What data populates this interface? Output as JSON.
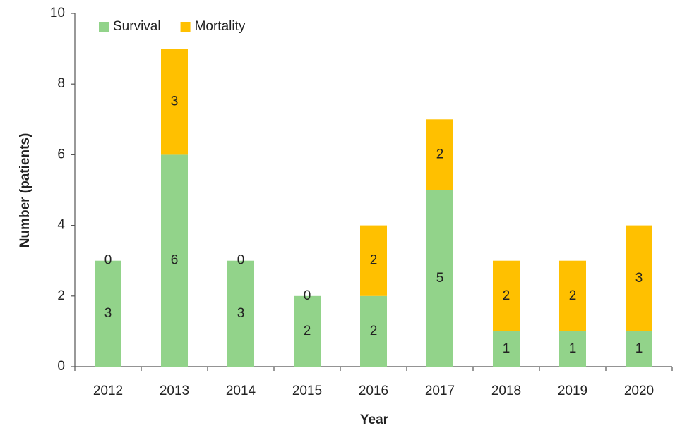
{
  "chart_data": {
    "type": "stacked_bar",
    "x_label": "Year",
    "y_label": "Number (patients)",
    "categories": [
      "2012",
      "2013",
      "2014",
      "2015",
      "2016",
      "2017",
      "2018",
      "2019",
      "2020"
    ],
    "series": [
      {
        "name": "Survival",
        "color": "#92d38a",
        "values": [
          3,
          6,
          3,
          2,
          2,
          5,
          1,
          1,
          1
        ]
      },
      {
        "name": "Mortality",
        "color": "#ffc000",
        "values": [
          0,
          3,
          0,
          0,
          2,
          2,
          2,
          2,
          3
        ]
      }
    ],
    "ylim": [
      0,
      10
    ],
    "yticks": [
      0,
      2,
      4,
      6,
      8,
      10
    ],
    "legend": "top-left"
  }
}
